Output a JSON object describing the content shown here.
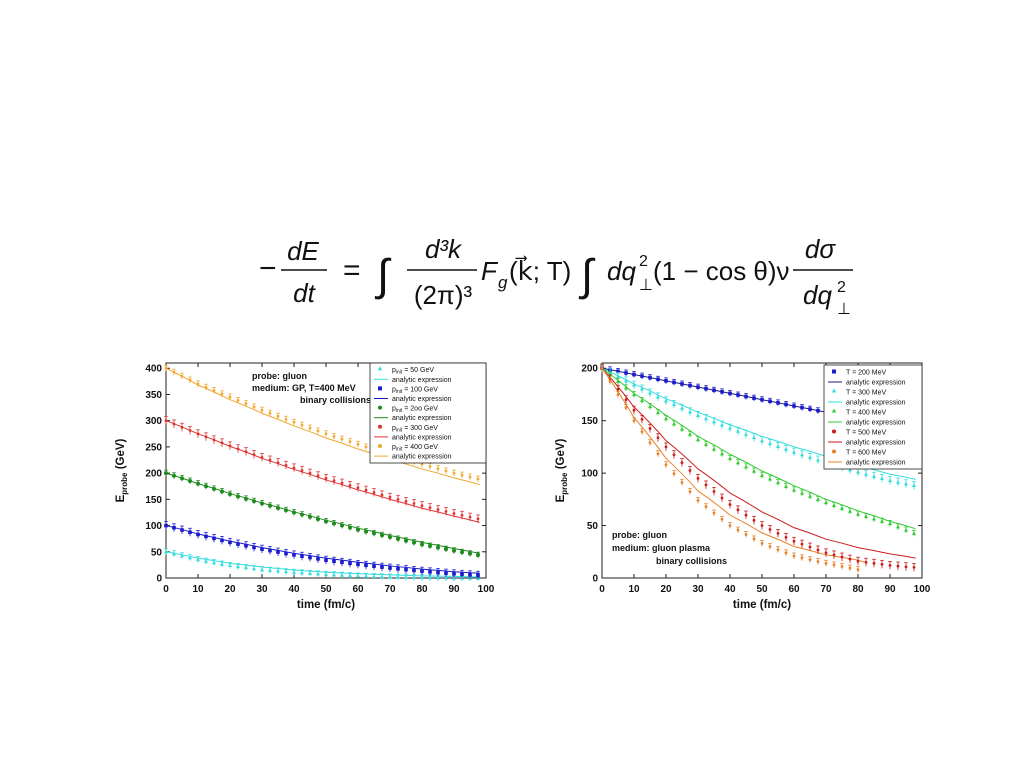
{
  "equation": {
    "minus": "−",
    "lhs_num": "dE",
    "lhs_den": "dt",
    "equals": "=",
    "integral": "∫",
    "frac1_num": "d³k",
    "frac1_den": "(2π)³",
    "fg": "F",
    "fg_sub": "g",
    "fg_args": "(k⃗; T)",
    "dq": "dq",
    "perp_sup": "2",
    "perp_sub": "⊥",
    "factor": "(1 − cos θ)ν",
    "frac2_num": "dσ",
    "frac2_den": "dq"
  },
  "chart_data": [
    {
      "type": "line",
      "xlabel": "time (fm/c)",
      "ylabel_main": "E",
      "ylabel_sub": "probe",
      "ylabel_unit": " (GeV)",
      "xlim": [
        0,
        100
      ],
      "ylim": [
        0,
        410
      ],
      "xticks": [
        0,
        10,
        20,
        30,
        40,
        50,
        60,
        70,
        80,
        90,
        100
      ],
      "yticks": [
        0,
        50,
        100,
        150,
        200,
        250,
        300,
        350,
        400
      ],
      "annotations": [
        "probe: gluon",
        "medium: GP, T=400 MeV",
        "binary collisions"
      ],
      "legend_position": "top-right",
      "series": [
        {
          "points_label": "p_init = 50 GeV",
          "p_sym": "p",
          "p_sub": "init",
          "p_rest": " = 50 GeV",
          "curve_label": "analytic expression",
          "color": "#33dddd",
          "marker": "triangle",
          "x": [
            0,
            10,
            20,
            30,
            40,
            50,
            60,
            70,
            80,
            90,
            98
          ],
          "points": [
            50,
            35,
            24,
            16,
            11,
            7,
            4,
            2,
            1,
            0,
            0
          ],
          "analytic": [
            50,
            38,
            28,
            21,
            15,
            11,
            8,
            6,
            4,
            3,
            2
          ]
        },
        {
          "points_label": "p_init = 100 GeV",
          "p_sym": "p",
          "p_sub": "init",
          "p_rest": " = 100 GeV",
          "curve_label": "analytic expression",
          "color": "#1a1acc",
          "marker": "square",
          "x": [
            0,
            10,
            20,
            30,
            40,
            50,
            60,
            70,
            80,
            90,
            98
          ],
          "points": [
            100,
            83,
            68,
            55,
            44,
            34,
            26,
            19,
            13,
            8,
            5
          ],
          "analytic": [
            100,
            84,
            70,
            58,
            47,
            38,
            30,
            23,
            17,
            12,
            9
          ]
        },
        {
          "points_label": "p_init = 2oo GeV",
          "p_sym": "p",
          "p_sub": "init",
          "p_rest": " = 2oo GeV",
          "curve_label": "analytic expression",
          "color": "#1c8a1c",
          "marker": "circle",
          "x": [
            0,
            10,
            20,
            30,
            40,
            50,
            60,
            70,
            80,
            90,
            98
          ],
          "points": [
            200,
            180,
            160,
            142,
            125,
            108,
            92,
            78,
            64,
            52,
            43
          ],
          "analytic": [
            200,
            180,
            161,
            143,
            126,
            110,
            95,
            81,
            68,
            56,
            47
          ]
        },
        {
          "points_label": "p_init = 300 GeV",
          "p_sym": "p",
          "p_sub": "init",
          "p_rest": " = 300 GeV",
          "curve_label": "analytic expression",
          "color": "#dd3333",
          "marker": "dot",
          "x": [
            0,
            10,
            20,
            30,
            40,
            50,
            60,
            70,
            80,
            90,
            98
          ],
          "points": [
            300,
            275,
            252,
            230,
            210,
            190,
            172,
            154,
            138,
            123,
            112
          ],
          "analytic": [
            300,
            275,
            251,
            228,
            207,
            187,
            168,
            150,
            133,
            118,
            106
          ]
        },
        {
          "points_label": "p_init = 400 GeV",
          "p_sym": "p",
          "p_sub": "init",
          "p_rest": " = 400 GeV",
          "curve_label": "analytic expression",
          "color": "#f0a830",
          "marker": "dot",
          "x": [
            0,
            10,
            20,
            30,
            40,
            50,
            60,
            70,
            80,
            90,
            98
          ],
          "points": [
            400,
            370,
            345,
            320,
            297,
            275,
            255,
            235,
            217,
            200,
            188
          ],
          "analytic": [
            400,
            368,
            340,
            314,
            290,
            267,
            246,
            226,
            208,
            191,
            178
          ]
        }
      ]
    },
    {
      "type": "line",
      "xlabel": "time (fm/c)",
      "ylabel_main": "E",
      "ylabel_sub": "probe",
      "ylabel_unit": " (GeV)",
      "xlim": [
        0,
        100
      ],
      "ylim": [
        0,
        205
      ],
      "xticks": [
        0,
        10,
        20,
        30,
        40,
        50,
        60,
        70,
        80,
        90,
        100
      ],
      "yticks": [
        0,
        50,
        100,
        150,
        200
      ],
      "annotations": [
        "probe: gluon",
        "medium: gluon plasma",
        "binary collisions"
      ],
      "legend_position": "top-right",
      "series": [
        {
          "points_label": "T = 200 MeV",
          "curve_label": "analytic expression",
          "color": "#1a1acc",
          "curve_color": "#1a1a80",
          "marker": "square",
          "x": [
            0,
            10,
            20,
            30,
            40,
            50,
            60,
            70,
            80,
            90,
            98
          ],
          "points": [
            200,
            194,
            188,
            182,
            176,
            170,
            164,
            158,
            152,
            146,
            142
          ],
          "analytic": [
            200,
            194,
            188,
            182,
            176,
            170,
            164,
            158,
            152,
            146,
            142
          ]
        },
        {
          "points_label": "T = 300 MeV",
          "curve_label": "analytic expression",
          "color": "#33dddd",
          "marker": "triangle",
          "x": [
            0,
            10,
            20,
            30,
            40,
            50,
            60,
            70,
            80,
            90,
            98
          ],
          "points": [
            200,
            184,
            169,
            155,
            143,
            131,
            120,
            110,
            101,
            93,
            88
          ],
          "analytic": [
            200,
            185,
            171,
            158,
            146,
            135,
            125,
            116,
            107,
            99,
            94
          ]
        },
        {
          "points_label": "T = 400 MeV",
          "curve_label": "analytic expression",
          "color": "#33cc33",
          "marker": "triangle",
          "x": [
            0,
            10,
            20,
            30,
            40,
            50,
            60,
            70,
            80,
            90,
            98
          ],
          "points": [
            200,
            175,
            152,
            132,
            114,
            98,
            84,
            72,
            61,
            52,
            42
          ],
          "analytic": [
            200,
            176,
            155,
            135,
            118,
            102,
            88,
            75,
            64,
            54,
            47
          ]
        },
        {
          "points_label": "T = 500 MeV",
          "curve_label": "analytic expression",
          "color": "#cc1a1a",
          "marker": "dot",
          "x": [
            0,
            10,
            20,
            30,
            40,
            50,
            60,
            70,
            80,
            90,
            98
          ],
          "points": [
            200,
            160,
            125,
            95,
            70,
            50,
            35,
            24,
            16,
            12,
            10
          ],
          "analytic": [
            200,
            163,
            131,
            104,
            81,
            63,
            48,
            37,
            29,
            23,
            19
          ]
        },
        {
          "points_label": "T = 600 MeV",
          "curve_label": "analytic expression",
          "color": "#e8822a",
          "marker": "dot",
          "x": [
            0,
            10,
            20,
            30,
            40,
            50,
            60,
            70,
            80,
            82
          ],
          "points": [
            200,
            150,
            108,
            74,
            50,
            33,
            21,
            14,
            8,
            7
          ],
          "analytic": [
            200,
            153,
            114,
            83,
            60,
            43,
            30,
            22,
            17,
            15
          ]
        }
      ]
    }
  ]
}
